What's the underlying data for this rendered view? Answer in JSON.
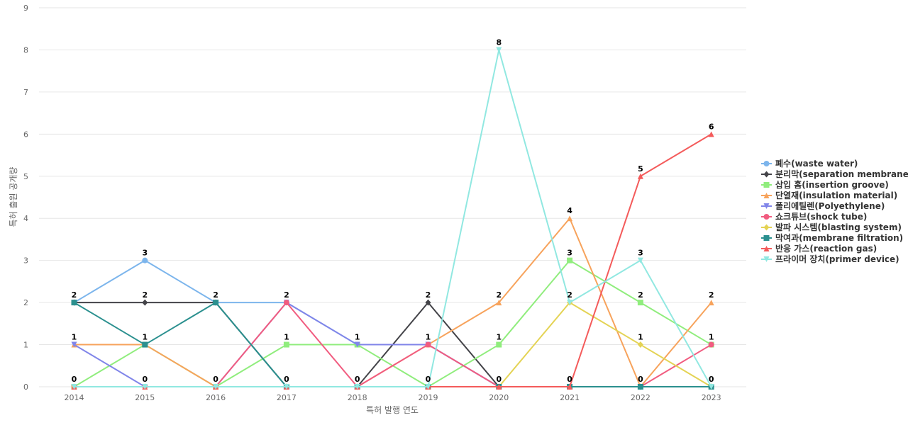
{
  "chart_data": {
    "type": "line",
    "title": "",
    "xlabel": "특허 발행 연도",
    "ylabel": "특허 출원 공개량",
    "x": [
      "2014",
      "2015",
      "2016",
      "2017",
      "2018",
      "2019",
      "2020",
      "2021",
      "2022",
      "2023"
    ],
    "ylim": [
      0,
      9
    ],
    "yticks": [
      "0",
      "1",
      "2",
      "3",
      "4",
      "5",
      "6",
      "7",
      "8",
      "9"
    ],
    "grid": true,
    "legend_position": "right",
    "series": [
      {
        "name": "폐수(waste water)",
        "color": "#7cb5ec",
        "marker": "circle",
        "values": [
          2,
          3,
          2,
          2,
          1,
          1,
          0,
          0,
          0,
          0
        ]
      },
      {
        "name": "분리막(separation membrane)",
        "color": "#434348",
        "marker": "diamond",
        "values": [
          2,
          2,
          2,
          0,
          0,
          2,
          0,
          0,
          0,
          0
        ]
      },
      {
        "name": "삽입 홈(insertion groove)",
        "color": "#90ed7d",
        "marker": "square",
        "values": [
          0,
          1,
          0,
          1,
          1,
          0,
          1,
          3,
          2,
          1
        ]
      },
      {
        "name": "단열재(insulation material)",
        "color": "#f7a35c",
        "marker": "triangle",
        "values": [
          1,
          1,
          0,
          0,
          0,
          1,
          2,
          4,
          0,
          2
        ]
      },
      {
        "name": "폴리에틸렌(Polyethylene)",
        "color": "#8085e9",
        "marker": "triangle-down",
        "values": [
          1,
          0,
          0,
          2,
          1,
          1,
          0,
          0,
          0,
          0
        ]
      },
      {
        "name": "쇼크튜브(shock tube)",
        "color": "#f15c80",
        "marker": "circle",
        "values": [
          0,
          0,
          0,
          2,
          0,
          1,
          0,
          0,
          0,
          1
        ]
      },
      {
        "name": "발파 시스템(blasting system)",
        "color": "#e4d354",
        "marker": "diamond",
        "values": [
          0,
          0,
          0,
          0,
          0,
          0,
          0,
          2,
          1,
          0
        ]
      },
      {
        "name": "막여과(membrane filtration)",
        "color": "#2b908f",
        "marker": "square",
        "values": [
          2,
          1,
          2,
          0,
          0,
          0,
          0,
          0,
          0,
          0
        ]
      },
      {
        "name": "반응 가스(reaction gas)",
        "color": "#f45b5b",
        "marker": "triangle",
        "values": [
          0,
          0,
          0,
          0,
          0,
          0,
          0,
          0,
          5,
          6
        ]
      },
      {
        "name": "프라이머 장치(primer device)",
        "color": "#91e8e1",
        "marker": "triangle-down",
        "values": [
          0,
          0,
          0,
          0,
          0,
          0,
          8,
          2,
          3,
          0
        ]
      }
    ],
    "point_labels": [
      {
        "x": "2014",
        "values": [
          "0",
          "1",
          "2"
        ]
      },
      {
        "x": "2015",
        "values": [
          "0",
          "1",
          "2",
          "3"
        ]
      },
      {
        "x": "2016",
        "values": [
          "0",
          "2"
        ]
      },
      {
        "x": "2017",
        "values": [
          "0",
          "1",
          "2"
        ]
      },
      {
        "x": "2018",
        "values": [
          "0",
          "1"
        ]
      },
      {
        "x": "2019",
        "values": [
          "0",
          "1",
          "2"
        ]
      },
      {
        "x": "2020",
        "values": [
          "0",
          "1",
          "2",
          "8"
        ]
      },
      {
        "x": "2021",
        "values": [
          "0",
          "2",
          "3",
          "4"
        ]
      },
      {
        "x": "2022",
        "values": [
          "0",
          "1",
          "2",
          "3",
          "5"
        ]
      },
      {
        "x": "2023",
        "values": [
          "0",
          "1",
          "2",
          "6"
        ]
      }
    ]
  }
}
